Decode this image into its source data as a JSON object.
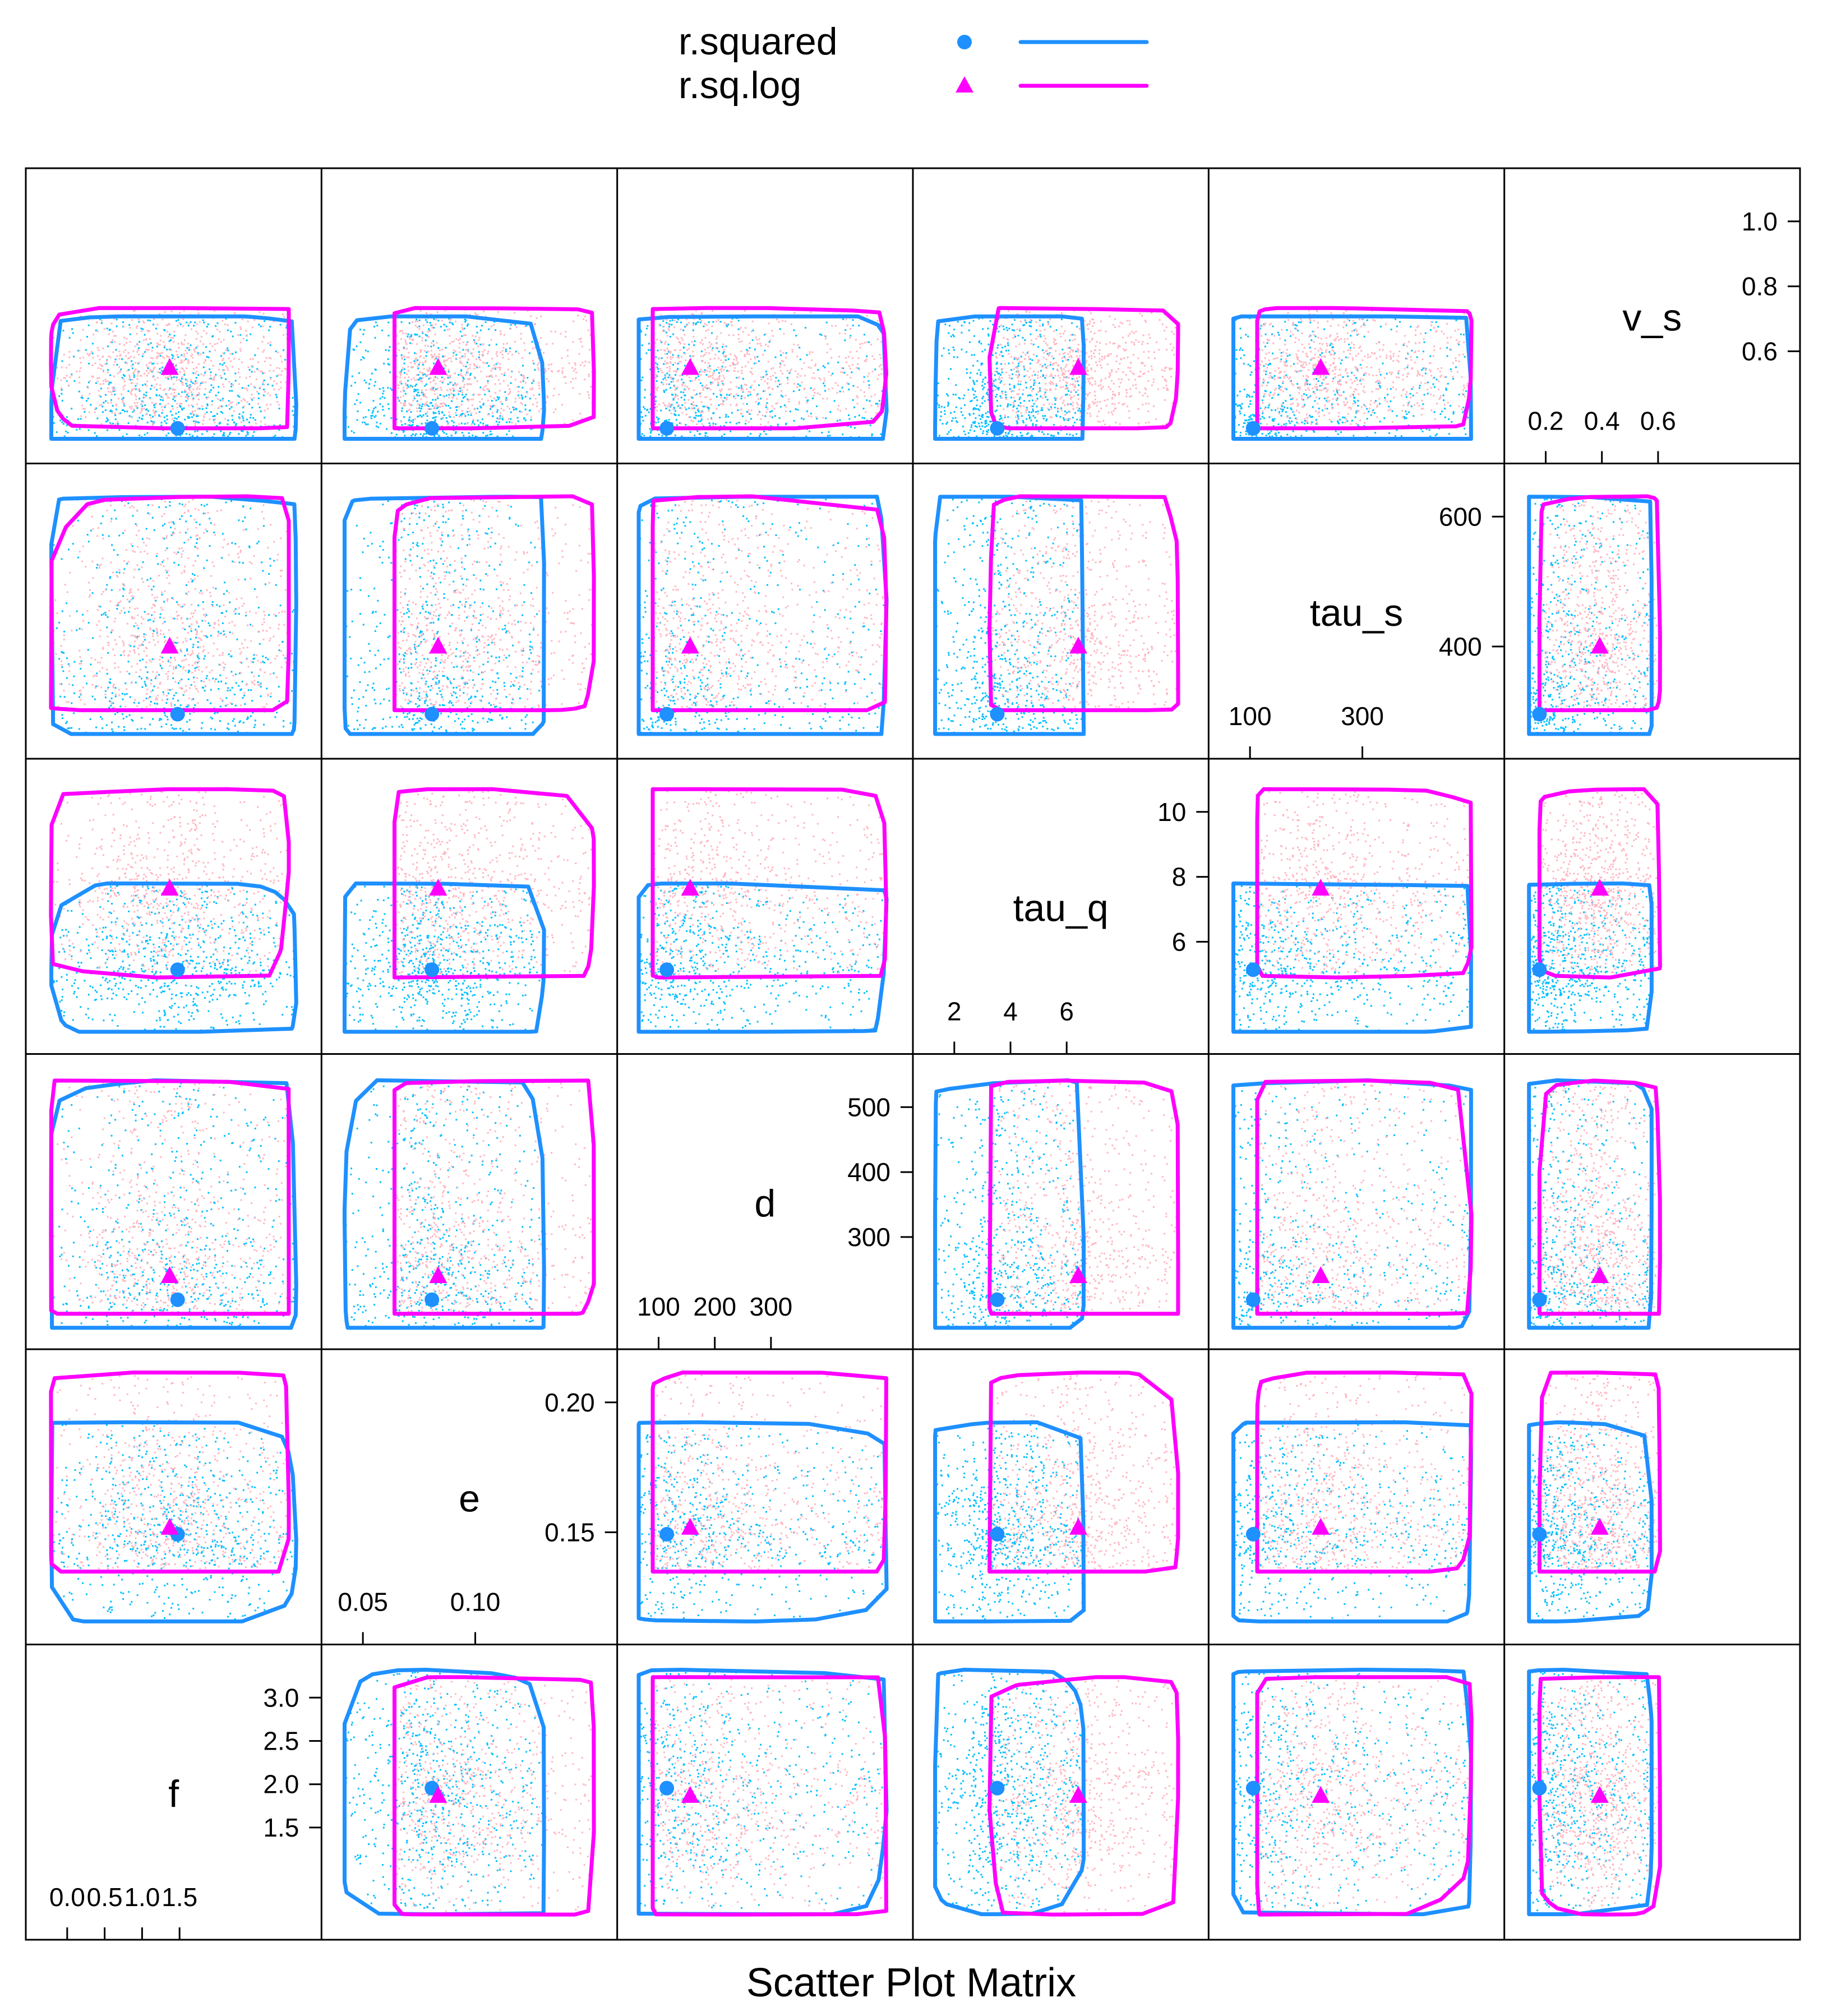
{
  "chart_data": {
    "type": "scatter",
    "title": "Scatter Plot Matrix",
    "legend": {
      "placement": "top",
      "entries": [
        {
          "label": "r.squared",
          "color": "#1E90FF",
          "symbol": "circle",
          "line": true
        },
        {
          "label": "r.sq.log",
          "color": "#FF00FF",
          "symbol": "triangle",
          "line": true
        }
      ]
    },
    "variables": [
      "f",
      "e",
      "d",
      "tau_q",
      "tau_s",
      "v_s"
    ],
    "diagonal": [
      {
        "label": "f",
        "ticks_low": [
          "0.0",
          "0.5",
          "1.0",
          "1.5"
        ],
        "ticks_high": [
          "1.5",
          "2.0",
          "2.5",
          "3.0"
        ]
      },
      {
        "label": "e",
        "ticks_low": [
          "0.05",
          "0.10"
        ],
        "ticks_high": [
          "0.15",
          "0.20"
        ]
      },
      {
        "label": "d",
        "ticks_low": [
          "100",
          "200",
          "300"
        ],
        "ticks_high": [
          "300",
          "400",
          "500"
        ]
      },
      {
        "label": "tau_q",
        "ticks_low": [
          "2",
          "4",
          "6"
        ],
        "ticks_high": [
          "6",
          "8",
          "10"
        ]
      },
      {
        "label": "tau_s",
        "ticks_low": [
          "100",
          "300"
        ],
        "ticks_high": [
          "400",
          "600"
        ]
      },
      {
        "label": "v_s",
        "ticks_low": [
          "0.2",
          "0.4",
          "0.6"
        ],
        "ticks_high": [
          "0.6",
          "0.8",
          "1.0"
        ]
      }
    ],
    "ranges": {
      "f": [
        -0.1,
        3.2
      ],
      "e": [
        -0.005,
        0.205
      ],
      "d": [
        20,
        580
      ],
      "tau_q": [
        0.8,
        10.5
      ],
      "tau_s": [
        -20,
        640
      ],
      "v_s": [
        0.05,
        1.05
      ]
    },
    "series": [
      {
        "name": "r.squared",
        "color": "#1E90FF",
        "point_color": "#00BFFF",
        "centroid": {
          "f": 1.6,
          "e": 0.07,
          "d": 90,
          "tau_q": 3.3,
          "tau_s": 50,
          "v_s": 0.12
        },
        "spread": {
          "f": [
            0.0,
            3.1
          ],
          "e": [
            0.0,
            0.16
          ],
          "d": [
            30,
            560
          ],
          "tau_q": [
            1.0,
            6.5
          ],
          "tau_s": [
            0,
            600
          ],
          "v_s": [
            0.08,
            0.55
          ]
        }
      },
      {
        "name": "r.sq.log",
        "color": "#FF00FF",
        "point_color": "#FFB6C1",
        "centroid": {
          "f": 1.5,
          "e": 0.075,
          "d": 140,
          "tau_q": 6.3,
          "tau_s": 220,
          "v_s": 0.35
        },
        "spread": {
          "f": [
            0.0,
            3.0
          ],
          "e": [
            0.04,
            0.2
          ],
          "d": [
            60,
            560
          ],
          "tau_q": [
            3.0,
            10.0
          ],
          "tau_s": [
            60,
            600
          ],
          "v_s": [
            0.12,
            0.58
          ]
        }
      }
    ],
    "grid": false
  }
}
